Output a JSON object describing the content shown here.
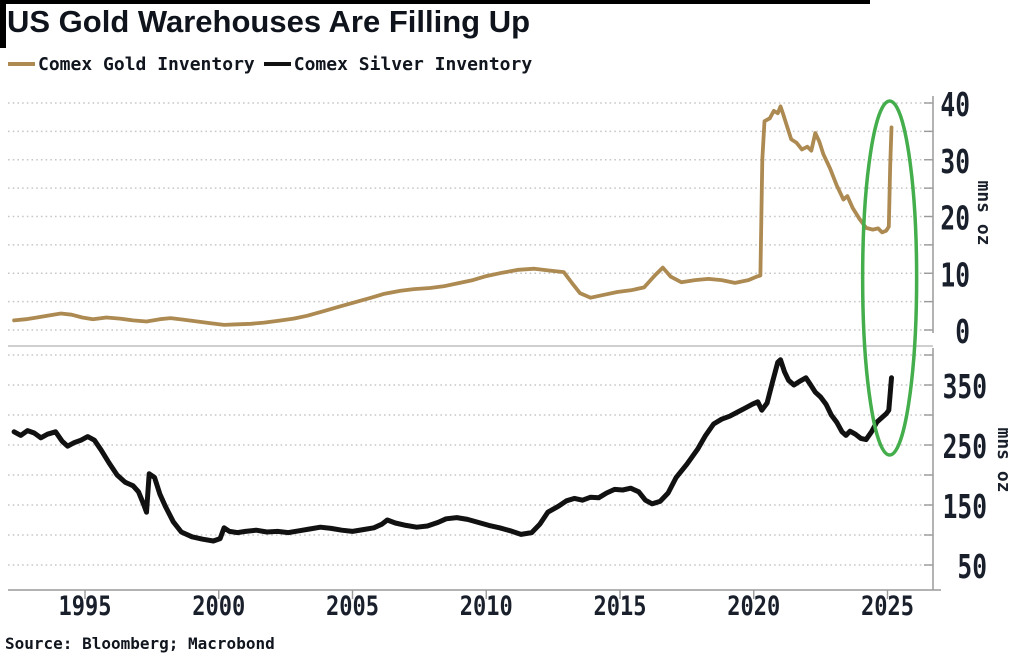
{
  "header": {
    "title": "US Gold Warehouses Are Filling Up"
  },
  "legend": [
    {
      "label": "Comex Gold Inventory",
      "color": "#ac8a52"
    },
    {
      "label": "Comex Silver Inventory",
      "color": "#111111"
    }
  ],
  "footer": {
    "source": "Source: Bloomberg; Macrobond"
  },
  "chart_data": {
    "type": "line",
    "title": "US Gold Warehouses Are Filling Up",
    "legend_position": "top-left",
    "grid": "dotted horizontal",
    "x_ticks": [
      1995,
      2000,
      2005,
      2010,
      2015,
      2020,
      2025
    ],
    "x_range": [
      1992.3,
      2026.8
    ],
    "annotation": {
      "type": "ellipse",
      "color": "#43ae4b",
      "center_year": 2025.08,
      "note": "green ellipse highlighting simultaneous 2025 spikes in both panels"
    },
    "panels": [
      {
        "name": "gold",
        "ylabel": "mns oz",
        "y_grid": [
          0,
          5,
          10,
          15,
          20,
          25,
          30,
          35,
          40
        ],
        "y_ticks_labeled": [
          0,
          10,
          20,
          30,
          40
        ],
        "ylim": [
          0,
          41.5
        ],
        "series": {
          "name": "Comex Gold Inventory",
          "color": "#ac8a52",
          "points": [
            [
              1992.35,
              1.7
            ],
            [
              1992.8,
              1.9
            ],
            [
              1993.2,
              2.2
            ],
            [
              1993.7,
              2.6
            ],
            [
              1994.1,
              2.9
            ],
            [
              1994.5,
              2.7
            ],
            [
              1994.9,
              2.2
            ],
            [
              1995.3,
              1.9
            ],
            [
              1995.8,
              2.2
            ],
            [
              1996.3,
              2.0
            ],
            [
              1996.8,
              1.7
            ],
            [
              1997.3,
              1.5
            ],
            [
              1997.8,
              1.9
            ],
            [
              1998.2,
              2.1
            ],
            [
              1998.7,
              1.8
            ],
            [
              1999.2,
              1.5
            ],
            [
              1999.7,
              1.2
            ],
            [
              2000.2,
              0.9
            ],
            [
              2000.7,
              1.0
            ],
            [
              2001.2,
              1.1
            ],
            [
              2001.7,
              1.3
            ],
            [
              2002.2,
              1.6
            ],
            [
              2002.8,
              2.0
            ],
            [
              2003.3,
              2.5
            ],
            [
              2003.9,
              3.3
            ],
            [
              2004.5,
              4.1
            ],
            [
              2005.1,
              4.9
            ],
            [
              2005.7,
              5.7
            ],
            [
              2006.2,
              6.4
            ],
            [
              2006.8,
              6.9
            ],
            [
              2007.3,
              7.2
            ],
            [
              2007.9,
              7.4
            ],
            [
              2008.4,
              7.7
            ],
            [
              2008.9,
              8.2
            ],
            [
              2009.5,
              8.8
            ],
            [
              2010.0,
              9.5
            ],
            [
              2010.6,
              10.1
            ],
            [
              2011.2,
              10.6
            ],
            [
              2011.8,
              10.8
            ],
            [
              2012.3,
              10.5
            ],
            [
              2012.9,
              10.2
            ],
            [
              2013.25,
              8.0
            ],
            [
              2013.5,
              6.5
            ],
            [
              2013.9,
              5.7
            ],
            [
              2014.4,
              6.2
            ],
            [
              2014.9,
              6.7
            ],
            [
              2015.4,
              7.0
            ],
            [
              2015.9,
              7.5
            ],
            [
              2016.3,
              9.6
            ],
            [
              2016.6,
              11.0
            ],
            [
              2016.9,
              9.4
            ],
            [
              2017.3,
              8.4
            ],
            [
              2017.8,
              8.8
            ],
            [
              2018.3,
              9.0
            ],
            [
              2018.8,
              8.8
            ],
            [
              2019.3,
              8.3
            ],
            [
              2019.8,
              8.8
            ],
            [
              2020.1,
              9.4
            ],
            [
              2020.25,
              9.6
            ],
            [
              2020.32,
              30.0
            ],
            [
              2020.4,
              36.8
            ],
            [
              2020.6,
              37.3
            ],
            [
              2020.75,
              38.6
            ],
            [
              2020.9,
              38.2
            ],
            [
              2021.0,
              39.4
            ],
            [
              2021.1,
              38.0
            ],
            [
              2021.25,
              35.8
            ],
            [
              2021.4,
              33.6
            ],
            [
              2021.6,
              33.0
            ],
            [
              2021.8,
              31.8
            ],
            [
              2022.0,
              32.3
            ],
            [
              2022.15,
              31.6
            ],
            [
              2022.3,
              34.7
            ],
            [
              2022.45,
              33.2
            ],
            [
              2022.6,
              31.0
            ],
            [
              2022.85,
              28.5
            ],
            [
              2023.1,
              25.5
            ],
            [
              2023.35,
              23.0
            ],
            [
              2023.5,
              23.6
            ],
            [
              2023.7,
              21.5
            ],
            [
              2023.95,
              19.6
            ],
            [
              2024.2,
              18.0
            ],
            [
              2024.45,
              17.7
            ],
            [
              2024.65,
              17.9
            ],
            [
              2024.8,
              17.2
            ],
            [
              2024.95,
              17.5
            ],
            [
              2025.05,
              18.2
            ],
            [
              2025.1,
              29.0
            ],
            [
              2025.15,
              35.7
            ]
          ]
        }
      },
      {
        "name": "silver",
        "ylabel": "mns oz",
        "y_grid": [
          50,
          100,
          150,
          200,
          250,
          300,
          350,
          400
        ],
        "y_ticks_labeled": [
          50,
          150,
          250,
          350
        ],
        "ylim": [
          10,
          412
        ],
        "series": {
          "name": "Comex Silver Inventory",
          "color": "#111111",
          "points": [
            [
              1992.35,
              272
            ],
            [
              1992.6,
              266
            ],
            [
              1992.85,
              274
            ],
            [
              1993.1,
              270
            ],
            [
              1993.35,
              262
            ],
            [
              1993.6,
              268
            ],
            [
              1993.9,
              272
            ],
            [
              1994.15,
              256
            ],
            [
              1994.35,
              248
            ],
            [
              1994.6,
              254
            ],
            [
              1994.85,
              258
            ],
            [
              1995.1,
              264
            ],
            [
              1995.35,
              258
            ],
            [
              1995.6,
              242
            ],
            [
              1995.9,
              220
            ],
            [
              1996.2,
              200
            ],
            [
              1996.5,
              188
            ],
            [
              1996.8,
              182
            ],
            [
              1997.0,
              172
            ],
            [
              1997.2,
              150
            ],
            [
              1997.3,
              138
            ],
            [
              1997.4,
              202
            ],
            [
              1997.6,
              196
            ],
            [
              1997.8,
              168
            ],
            [
              1998.0,
              148
            ],
            [
              1998.3,
              122
            ],
            [
              1998.6,
              105
            ],
            [
              1999.0,
              97
            ],
            [
              1999.4,
              93
            ],
            [
              1999.8,
              90
            ],
            [
              2000.05,
              94
            ],
            [
              2000.2,
              112
            ],
            [
              2000.4,
              106
            ],
            [
              2000.7,
              104
            ],
            [
              2001.0,
              106
            ],
            [
              2001.4,
              108
            ],
            [
              2001.8,
              105
            ],
            [
              2002.2,
              106
            ],
            [
              2002.6,
              104
            ],
            [
              2003.0,
              107
            ],
            [
              2003.4,
              110
            ],
            [
              2003.8,
              113
            ],
            [
              2004.2,
              111
            ],
            [
              2004.6,
              108
            ],
            [
              2005.0,
              106
            ],
            [
              2005.4,
              109
            ],
            [
              2005.8,
              112
            ],
            [
              2006.1,
              118
            ],
            [
              2006.3,
              125
            ],
            [
              2006.6,
              120
            ],
            [
              2007.0,
              116
            ],
            [
              2007.4,
              113
            ],
            [
              2007.8,
              115
            ],
            [
              2008.2,
              121
            ],
            [
              2008.5,
              127
            ],
            [
              2008.9,
              129
            ],
            [
              2009.3,
              126
            ],
            [
              2009.7,
              121
            ],
            [
              2010.1,
              116
            ],
            [
              2010.5,
              112
            ],
            [
              2010.9,
              107
            ],
            [
              2011.3,
              101
            ],
            [
              2011.7,
              104
            ],
            [
              2012.0,
              118
            ],
            [
              2012.3,
              138
            ],
            [
              2012.7,
              148
            ],
            [
              2013.0,
              157
            ],
            [
              2013.3,
              161
            ],
            [
              2013.6,
              158
            ],
            [
              2013.9,
              163
            ],
            [
              2014.2,
              162
            ],
            [
              2014.5,
              170
            ],
            [
              2014.8,
              176
            ],
            [
              2015.1,
              175
            ],
            [
              2015.4,
              178
            ],
            [
              2015.7,
              172
            ],
            [
              2015.95,
              158
            ],
            [
              2016.2,
              152
            ],
            [
              2016.5,
              156
            ],
            [
              2016.8,
              170
            ],
            [
              2017.1,
              196
            ],
            [
              2017.5,
              218
            ],
            [
              2017.9,
              243
            ],
            [
              2018.2,
              266
            ],
            [
              2018.5,
              285
            ],
            [
              2018.8,
              293
            ],
            [
              2019.1,
              298
            ],
            [
              2019.4,
              305
            ],
            [
              2019.7,
              312
            ],
            [
              2019.95,
              318
            ],
            [
              2020.15,
              322
            ],
            [
              2020.3,
              308
            ],
            [
              2020.5,
              320
            ],
            [
              2020.7,
              355
            ],
            [
              2020.9,
              388
            ],
            [
              2021.0,
              392
            ],
            [
              2021.15,
              372
            ],
            [
              2021.3,
              358
            ],
            [
              2021.5,
              350
            ],
            [
              2021.75,
              357
            ],
            [
              2021.95,
              362
            ],
            [
              2022.1,
              352
            ],
            [
              2022.3,
              338
            ],
            [
              2022.5,
              330
            ],
            [
              2022.7,
              318
            ],
            [
              2022.9,
              300
            ],
            [
              2023.1,
              288
            ],
            [
              2023.3,
              272
            ],
            [
              2023.45,
              266
            ],
            [
              2023.6,
              273
            ],
            [
              2023.8,
              268
            ],
            [
              2024.0,
              261
            ],
            [
              2024.2,
              259
            ],
            [
              2024.4,
              272
            ],
            [
              2024.6,
              288
            ],
            [
              2024.8,
              296
            ],
            [
              2024.95,
              302
            ],
            [
              2025.05,
              308
            ],
            [
              2025.15,
              362
            ]
          ]
        }
      }
    ]
  }
}
